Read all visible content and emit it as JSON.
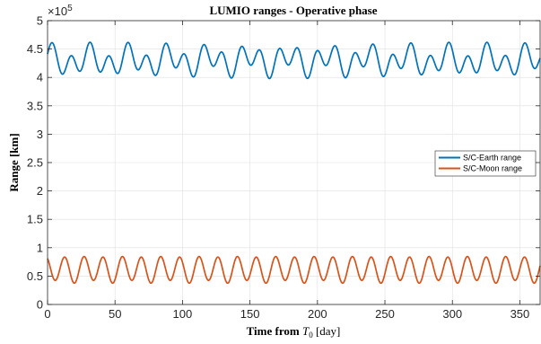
{
  "chart_data": {
    "type": "line",
    "title": "LUMIO ranges - Operative phase",
    "xlabel_prefix": "Time from ",
    "xlabel_symbol": "T",
    "xlabel_subscript": "0",
    "xlabel_suffix": " [day]",
    "ylabel": "Range [km]",
    "y_exponent_base": "×10",
    "y_exponent_power": "5",
    "xlim": [
      0,
      365
    ],
    "ylim": [
      0,
      5
    ],
    "x_ticks": [
      0,
      50,
      100,
      150,
      200,
      250,
      300,
      350
    ],
    "x_tick_labels": [
      "0",
      "50",
      "100",
      "150",
      "200",
      "250",
      "300",
      "350"
    ],
    "y_ticks": [
      0,
      0.5,
      1,
      1.5,
      2,
      2.5,
      3,
      3.5,
      4,
      4.5,
      5
    ],
    "y_tick_labels": [
      "0",
      "0.5",
      "1",
      "1.5",
      "2",
      "2.5",
      "3",
      "3.5",
      "4",
      "4.5",
      "5"
    ],
    "grid": true,
    "legend_position": "right",
    "series": [
      {
        "name": "S/C-Earth range",
        "color": "#0072bd",
        "model": {
          "mean": 4.3,
          "terms": [
            {
              "amp": 0.2,
              "period": 14.0,
              "phase": 0.0
            },
            {
              "amp": 0.12,
              "period": 29.5,
              "phase": 1.2
            }
          ]
        }
      },
      {
        "name": "S/C-Moon range",
        "color": "#d95319",
        "model": {
          "mean": 0.62,
          "terms": [
            {
              "amp": 0.22,
              "period": 14.2,
              "phase": 2.2
            },
            {
              "amp": 0.025,
              "period": 28.4,
              "phase": 0.5
            }
          ]
        }
      }
    ]
  }
}
